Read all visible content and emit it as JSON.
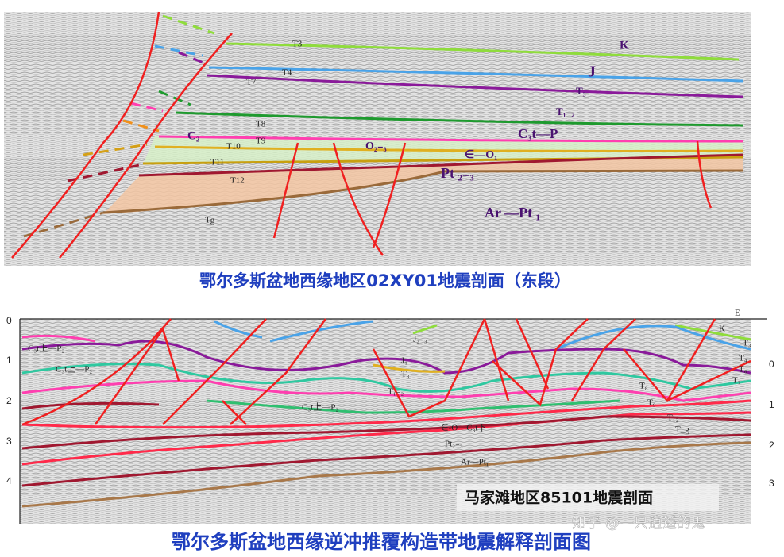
{
  "top": {
    "labels": [
      "T3",
      "K",
      "J",
      "T4",
      "T7",
      "T₃",
      "T₁₋₂",
      "T8",
      "C₂",
      "C₃t—P",
      "T10",
      "T9",
      "O₂₋₃",
      "∈—O₁",
      "T11",
      "Pt ₂₋₃",
      "T12",
      "Ar —Pt ₁",
      "Tg"
    ],
    "caption": "鄂尔多斯盆地西缘地区02XY01地震剖面（东段）"
  },
  "bottom": {
    "left_ticks": [
      "0",
      "1",
      "2",
      "3",
      "4"
    ],
    "right_ticks": [
      "0",
      "1",
      "2",
      "3"
    ],
    "labels": [
      "E",
      "K",
      "T₃",
      "T₄",
      "T₆",
      "T₇",
      "T₈",
      "T₉",
      "T₁₂",
      "T_g",
      "C₃t上—P₂",
      "C₃t上—P₂",
      "J₂₋₃",
      "J₁",
      "T₃",
      "T₁₋₂",
      "C₃t上—P₂",
      "∈-O—C₃t下",
      "Pt₂₋₃",
      "Ar—Pt₁"
    ],
    "caption": "马家滩地区85101地震剖面"
  },
  "title": "鄂尔多斯盆地西缘逆冲推覆构造带地震解释剖面图",
  "watermark": "知乎 @一只逍遥的鬼"
}
